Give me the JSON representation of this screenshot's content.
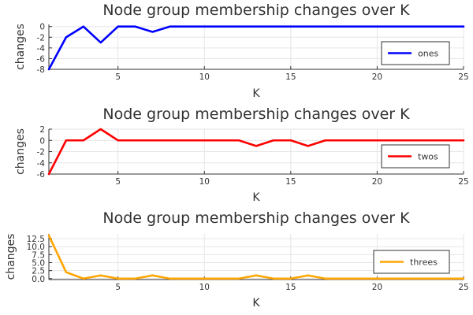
{
  "chart_data": [
    {
      "type": "line",
      "title": "Node group membership changes over K",
      "xlabel": "K",
      "ylabel": "changes",
      "xlim": [
        1,
        25
      ],
      "ylim": [
        -8,
        0.4
      ],
      "xticks": [
        5,
        10,
        15,
        20,
        25
      ],
      "xtick_labels": [
        "5",
        "10",
        "15",
        "20",
        "25"
      ],
      "yticks": [
        0,
        -2,
        -4,
        -6,
        -8
      ],
      "ytick_labels": [
        "0",
        "-2",
        "-4",
        "-6",
        "-8"
      ],
      "grid": true,
      "legend_position": "bottom-right",
      "series": [
        {
          "name": "ones",
          "color": "#0000ff",
          "x": [
            1,
            2,
            3,
            4,
            5,
            6,
            7,
            8,
            9,
            10,
            11,
            12,
            13,
            14,
            15,
            16,
            17,
            18,
            19,
            20,
            21,
            22,
            23,
            24,
            25
          ],
          "values": [
            -8,
            -2,
            0,
            -3,
            0,
            0,
            -1,
            0,
            0,
            0,
            0,
            0,
            0,
            0,
            0,
            0,
            0,
            0,
            0,
            0,
            0,
            0,
            0,
            0,
            0
          ]
        }
      ]
    },
    {
      "type": "line",
      "title": "Node group membership changes over K",
      "xlabel": "K",
      "ylabel": "changes",
      "xlim": [
        1,
        25
      ],
      "ylim": [
        -6,
        2
      ],
      "xticks": [
        5,
        10,
        15,
        20,
        25
      ],
      "xtick_labels": [
        "5",
        "10",
        "15",
        "20",
        "25"
      ],
      "yticks": [
        2,
        0,
        -2,
        -4,
        -6
      ],
      "ytick_labels": [
        "2",
        "0",
        "-2",
        "-4",
        "-6"
      ],
      "grid": true,
      "legend_position": "bottom-right",
      "series": [
        {
          "name": "twos",
          "color": "#ff0000",
          "x": [
            1,
            2,
            3,
            4,
            5,
            6,
            7,
            8,
            9,
            10,
            11,
            12,
            13,
            14,
            15,
            16,
            17,
            18,
            19,
            20,
            21,
            22,
            23,
            24,
            25
          ],
          "values": [
            -6,
            0,
            0,
            2,
            0,
            0,
            0,
            0,
            0,
            0,
            0,
            0,
            -1,
            0,
            0,
            -1,
            0,
            0,
            0,
            0,
            0,
            0,
            0,
            0,
            0
          ]
        }
      ]
    },
    {
      "type": "line",
      "title": "Node group membership changes over K",
      "xlabel": "K",
      "ylabel": "changes",
      "xlim": [
        1,
        25
      ],
      "ylim": [
        -0.3,
        14
      ],
      "xticks": [
        5,
        10,
        15,
        20,
        25
      ],
      "xtick_labels": [
        "5",
        "10",
        "15",
        "20",
        "25"
      ],
      "yticks": [
        12.5,
        10.0,
        7.5,
        5.0,
        2.5,
        0.0
      ],
      "ytick_labels": [
        "12.5",
        "10.0",
        "7.5",
        "5.0",
        "2.5",
        "0.0"
      ],
      "grid": true,
      "legend_position": "bottom-right",
      "series": [
        {
          "name": "threes",
          "color": "#ffa500",
          "x": [
            1,
            2,
            3,
            4,
            5,
            6,
            7,
            8,
            9,
            10,
            11,
            12,
            13,
            14,
            15,
            16,
            17,
            18,
            19,
            20,
            21,
            22,
            23,
            24,
            25
          ],
          "values": [
            13.5,
            2,
            0,
            1,
            0,
            0,
            1,
            0,
            0,
            0,
            0,
            0,
            1,
            0,
            0,
            1,
            0,
            0,
            0,
            0,
            0,
            0,
            0,
            0,
            0
          ]
        }
      ]
    }
  ]
}
